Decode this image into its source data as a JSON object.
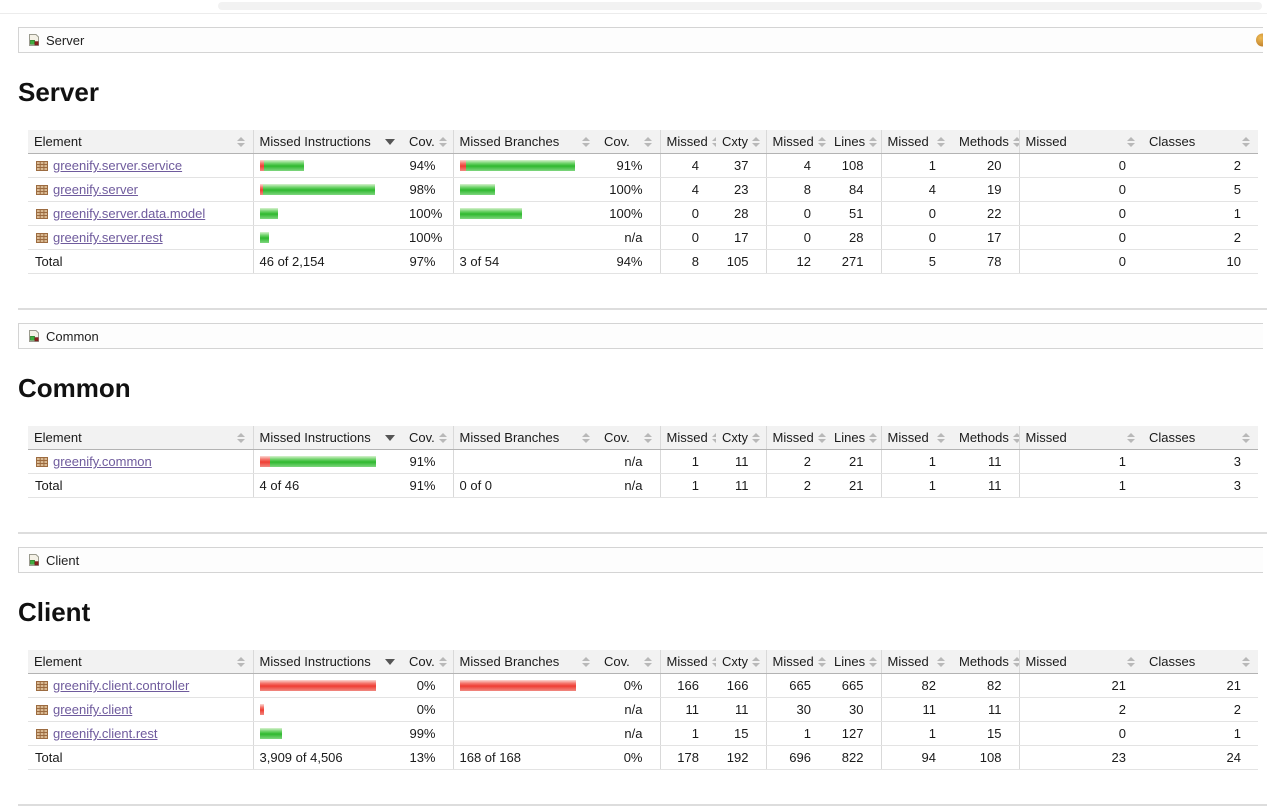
{
  "colors": {
    "link": "#6f5b9d",
    "bar_green": "#2eb82e",
    "bar_red": "#ef3d33",
    "header_bg": "#f2f2f2"
  },
  "table_columns": [
    {
      "label": "Element",
      "sort": "both"
    },
    {
      "label": "Missed Instructions",
      "sort": "desc"
    },
    {
      "label": "Cov.",
      "sort": "both"
    },
    {
      "label": "Missed Branches",
      "sort": "both"
    },
    {
      "label": "Cov.",
      "sort": "both"
    },
    {
      "label": "Missed",
      "sort": "both"
    },
    {
      "label": "Cxty",
      "sort": "both"
    },
    {
      "label": "Missed",
      "sort": "both"
    },
    {
      "label": "Lines",
      "sort": "both"
    },
    {
      "label": "Missed",
      "sort": "both"
    },
    {
      "label": "Methods",
      "sort": "both"
    },
    {
      "label": "Missed",
      "sort": "both"
    },
    {
      "label": "Classes",
      "sort": "both"
    }
  ],
  "sections": [
    {
      "id": "server",
      "breadcrumb": "Server",
      "title": "Server",
      "session_icon_visible": true,
      "rows": [
        {
          "name": "greenify.server.service",
          "instr_bar": {
            "red": 4,
            "green": 40
          },
          "instr_cov": "94%",
          "branch_bar": {
            "red": 6,
            "green": 109
          },
          "branch_cov": "91%",
          "metrics": [
            "4",
            "37",
            "4",
            "108",
            "1",
            "20",
            "0",
            "2"
          ]
        },
        {
          "name": "greenify.server",
          "instr_bar": {
            "red": 3,
            "green": 112
          },
          "instr_cov": "98%",
          "branch_bar": {
            "red": 0,
            "green": 35
          },
          "branch_cov": "100%",
          "metrics": [
            "4",
            "23",
            "8",
            "84",
            "4",
            "19",
            "0",
            "5"
          ]
        },
        {
          "name": "greenify.server.data.model",
          "instr_bar": {
            "red": 0,
            "green": 18
          },
          "instr_cov": "100%",
          "branch_bar": {
            "red": 0,
            "green": 62
          },
          "branch_cov": "100%",
          "metrics": [
            "0",
            "28",
            "0",
            "51",
            "0",
            "22",
            "0",
            "1"
          ]
        },
        {
          "name": "greenify.server.rest",
          "instr_bar": {
            "red": 0,
            "green": 9
          },
          "instr_cov": "100%",
          "branch_bar": null,
          "branch_cov": "n/a",
          "metrics": [
            "0",
            "17",
            "0",
            "28",
            "0",
            "17",
            "0",
            "2"
          ]
        }
      ],
      "total": {
        "label": "Total",
        "instr_text": "46 of 2,154",
        "instr_cov": "97%",
        "branch_text": "3 of 54",
        "branch_cov": "94%",
        "metrics": [
          "8",
          "105",
          "12",
          "271",
          "5",
          "78",
          "0",
          "10"
        ]
      }
    },
    {
      "id": "common",
      "breadcrumb": "Common",
      "title": "Common",
      "session_icon_visible": false,
      "rows": [
        {
          "name": "greenify.common",
          "instr_bar": {
            "red": 10,
            "green": 106
          },
          "instr_cov": "91%",
          "branch_bar": null,
          "branch_cov": "n/a",
          "metrics": [
            "1",
            "11",
            "2",
            "21",
            "1",
            "11",
            "1",
            "3"
          ]
        }
      ],
      "total": {
        "label": "Total",
        "instr_text": "4 of 46",
        "instr_cov": "91%",
        "branch_text": "0 of 0",
        "branch_cov": "n/a",
        "metrics": [
          "1",
          "11",
          "2",
          "21",
          "1",
          "11",
          "1",
          "3"
        ]
      }
    },
    {
      "id": "client",
      "breadcrumb": "Client",
      "title": "Client",
      "session_icon_visible": false,
      "rows": [
        {
          "name": "greenify.client.controller",
          "instr_bar": {
            "red": 116,
            "green": 0
          },
          "instr_cov": "0%",
          "branch_bar": {
            "red": 116,
            "green": 0
          },
          "branch_cov": "0%",
          "metrics": [
            "166",
            "166",
            "665",
            "665",
            "82",
            "82",
            "21",
            "21"
          ]
        },
        {
          "name": "greenify.client",
          "instr_bar": {
            "red": 4,
            "green": 0
          },
          "instr_cov": "0%",
          "branch_bar": null,
          "branch_cov": "n/a",
          "metrics": [
            "11",
            "11",
            "30",
            "30",
            "11",
            "11",
            "2",
            "2"
          ]
        },
        {
          "name": "greenify.client.rest",
          "instr_bar": {
            "red": 0,
            "green": 22
          },
          "instr_cov": "99%",
          "branch_bar": null,
          "branch_cov": "n/a",
          "metrics": [
            "1",
            "15",
            "1",
            "127",
            "1",
            "15",
            "0",
            "1"
          ]
        }
      ],
      "total": {
        "label": "Total",
        "instr_text": "3,909 of 4,506",
        "instr_cov": "13%",
        "branch_text": "168 of 168",
        "branch_cov": "0%",
        "metrics": [
          "178",
          "192",
          "696",
          "822",
          "94",
          "108",
          "23",
          "24"
        ]
      }
    }
  ]
}
